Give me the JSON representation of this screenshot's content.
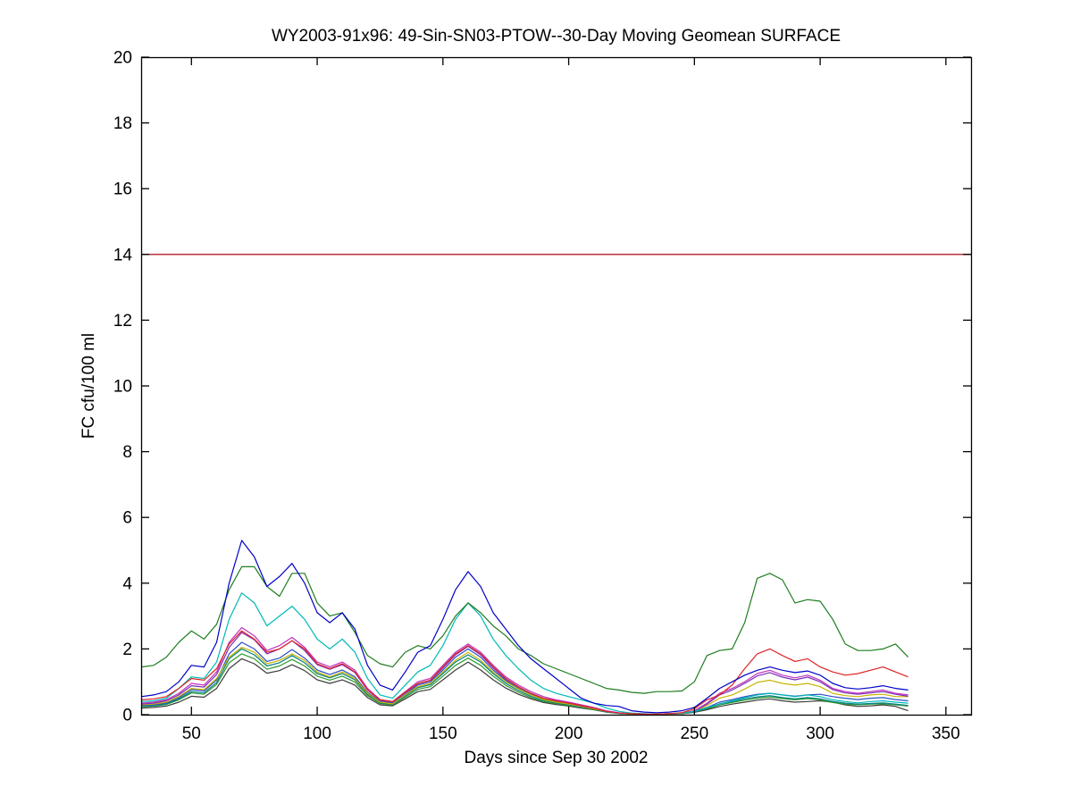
{
  "figure": {
    "background": "#ffffff",
    "axis_color": "#000000"
  },
  "chart_data": {
    "type": "line",
    "title": "WY2003-91x96: 49-Sin-SN03-PTOW--30-Day Moving Geomean SURFACE",
    "xlabel": "Days since Sep 30 2002",
    "ylabel": "FC cfu/100 ml",
    "xlim": [
      30,
      360
    ],
    "ylim": [
      0,
      20
    ],
    "xticks": [
      50,
      100,
      150,
      200,
      250,
      300,
      350
    ],
    "yticks": [
      0,
      2,
      4,
      6,
      8,
      10,
      12,
      14,
      16,
      18,
      20
    ],
    "grid": false,
    "legend_position": "none",
    "reference_line": {
      "name": "limit-line",
      "y": 14,
      "color": "#bb3238"
    },
    "x": [
      30,
      35,
      40,
      45,
      50,
      55,
      60,
      65,
      70,
      75,
      80,
      85,
      90,
      95,
      100,
      105,
      110,
      115,
      120,
      125,
      130,
      135,
      140,
      145,
      150,
      155,
      160,
      165,
      170,
      175,
      180,
      185,
      190,
      195,
      200,
      205,
      210,
      215,
      220,
      225,
      230,
      235,
      240,
      245,
      250,
      255,
      260,
      265,
      270,
      275,
      280,
      285,
      290,
      295,
      300,
      305,
      310,
      315,
      320,
      325,
      330,
      335
    ],
    "series": [
      {
        "name": "blue",
        "color": "#0000C8",
        "values": [
          0.55,
          0.6,
          0.7,
          1.0,
          1.5,
          1.45,
          2.2,
          4.0,
          5.3,
          4.8,
          3.9,
          4.2,
          4.6,
          4.0,
          3.1,
          2.8,
          3.1,
          2.6,
          1.5,
          0.9,
          0.75,
          1.3,
          1.9,
          2.1,
          2.9,
          3.8,
          4.35,
          3.9,
          3.1,
          2.6,
          2.1,
          1.7,
          1.4,
          1.1,
          0.8,
          0.5,
          0.35,
          0.28,
          0.25,
          0.12,
          0.08,
          0.06,
          0.08,
          0.12,
          0.22,
          0.5,
          0.8,
          1.0,
          1.2,
          1.35,
          1.45,
          1.35,
          1.28,
          1.33,
          1.2,
          0.95,
          0.82,
          0.78,
          0.82,
          0.88,
          0.8,
          0.75
        ]
      },
      {
        "name": "dark-green",
        "color": "#1E7D1E",
        "values": [
          1.45,
          1.5,
          1.75,
          2.2,
          2.55,
          2.3,
          2.75,
          3.8,
          4.5,
          4.5,
          3.9,
          3.6,
          4.3,
          4.3,
          3.4,
          3.0,
          3.1,
          2.5,
          1.8,
          1.55,
          1.45,
          1.9,
          2.1,
          2.0,
          2.4,
          3.0,
          3.4,
          3.1,
          2.7,
          2.4,
          2.0,
          1.8,
          1.55,
          1.4,
          1.25,
          1.1,
          0.95,
          0.8,
          0.75,
          0.68,
          0.65,
          0.7,
          0.7,
          0.72,
          1.0,
          1.8,
          1.95,
          2.0,
          2.8,
          4.15,
          4.3,
          4.1,
          3.4,
          3.5,
          3.45,
          2.9,
          2.15,
          1.95,
          1.95,
          2.0,
          2.15,
          1.75
        ]
      },
      {
        "name": "red",
        "color": "#DF2323",
        "values": [
          0.45,
          0.48,
          0.55,
          0.8,
          1.1,
          1.05,
          1.4,
          2.15,
          2.55,
          2.3,
          1.9,
          2.0,
          2.25,
          2.0,
          1.55,
          1.4,
          1.55,
          1.3,
          0.75,
          0.45,
          0.4,
          0.68,
          0.95,
          1.05,
          1.45,
          1.85,
          2.1,
          1.85,
          1.45,
          1.1,
          0.85,
          0.65,
          0.5,
          0.42,
          0.35,
          0.28,
          0.2,
          0.1,
          0.05,
          0.03,
          0.02,
          0.02,
          0.03,
          0.06,
          0.18,
          0.45,
          0.6,
          0.9,
          1.4,
          1.85,
          2.0,
          1.8,
          1.62,
          1.7,
          1.45,
          1.3,
          1.2,
          1.25,
          1.35,
          1.45,
          1.3,
          1.15
        ]
      },
      {
        "name": "cyan",
        "color": "#00B8B8",
        "values": [
          0.4,
          0.42,
          0.5,
          0.8,
          1.15,
          1.1,
          1.6,
          2.9,
          3.7,
          3.4,
          2.7,
          3.0,
          3.3,
          2.9,
          2.3,
          2.0,
          2.3,
          1.9,
          1.1,
          0.6,
          0.5,
          0.9,
          1.3,
          1.5,
          2.1,
          2.9,
          3.4,
          3.0,
          2.3,
          1.8,
          1.4,
          1.05,
          0.8,
          0.65,
          0.55,
          0.45,
          0.35,
          0.2,
          0.1,
          0.05,
          0.03,
          0.02,
          0.03,
          0.05,
          0.1,
          0.22,
          0.32,
          0.42,
          0.52,
          0.6,
          0.65,
          0.6,
          0.55,
          0.6,
          0.55,
          0.45,
          0.4,
          0.36,
          0.4,
          0.42,
          0.38,
          0.35
        ]
      },
      {
        "name": "magenta",
        "color": "#BE32BE",
        "values": [
          0.35,
          0.38,
          0.45,
          0.65,
          0.95,
          0.9,
          1.3,
          2.2,
          2.65,
          2.4,
          1.95,
          2.1,
          2.35,
          2.05,
          1.6,
          1.45,
          1.6,
          1.35,
          0.8,
          0.46,
          0.4,
          0.7,
          1.0,
          1.1,
          1.5,
          1.9,
          2.15,
          1.9,
          1.5,
          1.15,
          0.9,
          0.7,
          0.55,
          0.45,
          0.38,
          0.3,
          0.22,
          0.12,
          0.06,
          0.03,
          0.02,
          0.02,
          0.03,
          0.05,
          0.12,
          0.35,
          0.65,
          0.8,
          1.0,
          1.25,
          1.35,
          1.2,
          1.12,
          1.2,
          1.05,
          0.8,
          0.7,
          0.65,
          0.7,
          0.75,
          0.65,
          0.6
        ]
      },
      {
        "name": "purple",
        "color": "#7B2FB4",
        "values": [
          0.32,
          0.35,
          0.42,
          0.6,
          0.88,
          0.84,
          1.22,
          2.05,
          2.5,
          2.28,
          1.85,
          2.0,
          2.25,
          1.95,
          1.52,
          1.38,
          1.52,
          1.28,
          0.75,
          0.43,
          0.38,
          0.66,
          0.94,
          1.04,
          1.42,
          1.82,
          2.08,
          1.82,
          1.42,
          1.08,
          0.84,
          0.65,
          0.5,
          0.42,
          0.35,
          0.27,
          0.2,
          0.1,
          0.05,
          0.03,
          0.02,
          0.02,
          0.03,
          0.05,
          0.11,
          0.32,
          0.6,
          0.75,
          0.95,
          1.18,
          1.28,
          1.14,
          1.06,
          1.14,
          1.0,
          0.76,
          0.66,
          0.62,
          0.66,
          0.7,
          0.62,
          0.56
        ]
      },
      {
        "name": "dark-yellow",
        "color": "#C8B400",
        "values": [
          0.3,
          0.32,
          0.38,
          0.55,
          0.8,
          0.76,
          1.1,
          1.75,
          2.05,
          1.9,
          1.55,
          1.65,
          1.85,
          1.65,
          1.3,
          1.15,
          1.3,
          1.1,
          0.65,
          0.38,
          0.33,
          0.6,
          0.85,
          0.95,
          1.3,
          1.65,
          1.9,
          1.65,
          1.3,
          1.0,
          0.78,
          0.6,
          0.46,
          0.38,
          0.32,
          0.25,
          0.18,
          0.1,
          0.05,
          0.02,
          0.02,
          0.02,
          0.02,
          0.04,
          0.1,
          0.28,
          0.5,
          0.6,
          0.78,
          0.98,
          1.05,
          0.95,
          0.9,
          0.95,
          0.85,
          0.65,
          0.58,
          0.55,
          0.6,
          0.62,
          0.55,
          0.55
        ]
      },
      {
        "name": "medium-blue",
        "color": "#2B4FC8",
        "values": [
          0.28,
          0.3,
          0.36,
          0.52,
          0.76,
          0.72,
          1.06,
          1.85,
          2.2,
          2.0,
          1.62,
          1.72,
          1.98,
          1.72,
          1.36,
          1.22,
          1.36,
          1.15,
          0.68,
          0.4,
          0.35,
          0.62,
          0.9,
          1.0,
          1.36,
          1.75,
          2.0,
          1.75,
          1.36,
          1.04,
          0.8,
          0.62,
          0.48,
          0.4,
          0.33,
          0.26,
          0.19,
          0.1,
          0.05,
          0.03,
          0.02,
          0.02,
          0.03,
          0.04,
          0.09,
          0.22,
          0.38,
          0.46,
          0.55,
          0.62,
          0.65,
          0.6,
          0.56,
          0.6,
          0.62,
          0.55,
          0.5,
          0.46,
          0.5,
          0.52,
          0.46,
          0.42
        ]
      },
      {
        "name": "teal",
        "color": "#008080",
        "values": [
          0.26,
          0.28,
          0.33,
          0.48,
          0.7,
          0.66,
          0.98,
          1.7,
          2.0,
          1.82,
          1.48,
          1.58,
          1.8,
          1.58,
          1.25,
          1.12,
          1.25,
          1.06,
          0.62,
          0.36,
          0.32,
          0.57,
          0.82,
          0.91,
          1.25,
          1.6,
          1.82,
          1.6,
          1.25,
          0.95,
          0.73,
          0.56,
          0.43,
          0.36,
          0.3,
          0.23,
          0.17,
          0.09,
          0.04,
          0.02,
          0.02,
          0.02,
          0.02,
          0.04,
          0.08,
          0.2,
          0.33,
          0.4,
          0.48,
          0.54,
          0.58,
          0.52,
          0.48,
          0.52,
          0.48,
          0.4,
          0.35,
          0.32,
          0.34,
          0.36,
          0.32,
          0.28
        ]
      },
      {
        "name": "green-2",
        "color": "#2F9A2F",
        "values": [
          0.24,
          0.26,
          0.31,
          0.45,
          0.66,
          0.62,
          0.92,
          1.58,
          1.85,
          1.7,
          1.38,
          1.48,
          1.68,
          1.48,
          1.17,
          1.05,
          1.17,
          0.99,
          0.58,
          0.34,
          0.3,
          0.53,
          0.77,
          0.85,
          1.17,
          1.5,
          1.72,
          1.5,
          1.17,
          0.89,
          0.68,
          0.52,
          0.4,
          0.34,
          0.28,
          0.22,
          0.16,
          0.08,
          0.04,
          0.02,
          0.02,
          0.02,
          0.02,
          0.03,
          0.08,
          0.18,
          0.3,
          0.37,
          0.44,
          0.5,
          0.54,
          0.49,
          0.45,
          0.49,
          0.45,
          0.37,
          0.32,
          0.3,
          0.32,
          0.33,
          0.3,
          0.26
        ]
      },
      {
        "name": "dark-gray",
        "color": "#3C3C3C",
        "values": [
          0.2,
          0.22,
          0.26,
          0.38,
          0.56,
          0.53,
          0.8,
          1.4,
          1.7,
          1.55,
          1.26,
          1.34,
          1.52,
          1.34,
          1.06,
          0.95,
          1.06,
          0.9,
          0.52,
          0.3,
          0.27,
          0.48,
          0.7,
          0.77,
          1.06,
          1.36,
          1.6,
          1.36,
          1.06,
          0.81,
          0.62,
          0.48,
          0.37,
          0.31,
          0.26,
          0.2,
          0.15,
          0.08,
          0.04,
          0.02,
          0.02,
          0.02,
          0.02,
          0.03,
          0.07,
          0.15,
          0.25,
          0.32,
          0.38,
          0.44,
          0.48,
          0.42,
          0.38,
          0.4,
          0.42,
          0.38,
          0.3,
          0.25,
          0.27,
          0.3,
          0.25,
          0.12
        ]
      }
    ]
  }
}
